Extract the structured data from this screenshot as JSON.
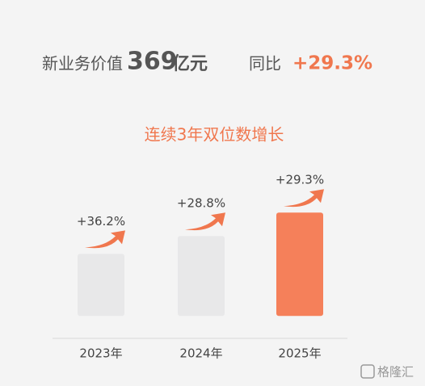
{
  "header": {
    "label": "新业务价值",
    "value": "369",
    "unit": "亿元",
    "yoy_label": "同比",
    "yoy": "+29.3%"
  },
  "chart_data": {
    "type": "bar",
    "title": "连续3年双位数增长",
    "categories": [
      "2023年",
      "2024年",
      "2025年"
    ],
    "values": [
      221.6,
      285.4,
      369
    ],
    "colors": [
      "#e8e8e9",
      "#e8e8e9",
      "#f5805a"
    ],
    "ylim": [
      -80,
      420
    ],
    "growth": {
      "values": [
        36.2,
        28.8,
        29.3
      ],
      "value_labels": [
        "+36.2%",
        "+28.8%",
        "+29.3%"
      ],
      "color": "#f0774e"
    }
  },
  "watermark": "格隆汇"
}
